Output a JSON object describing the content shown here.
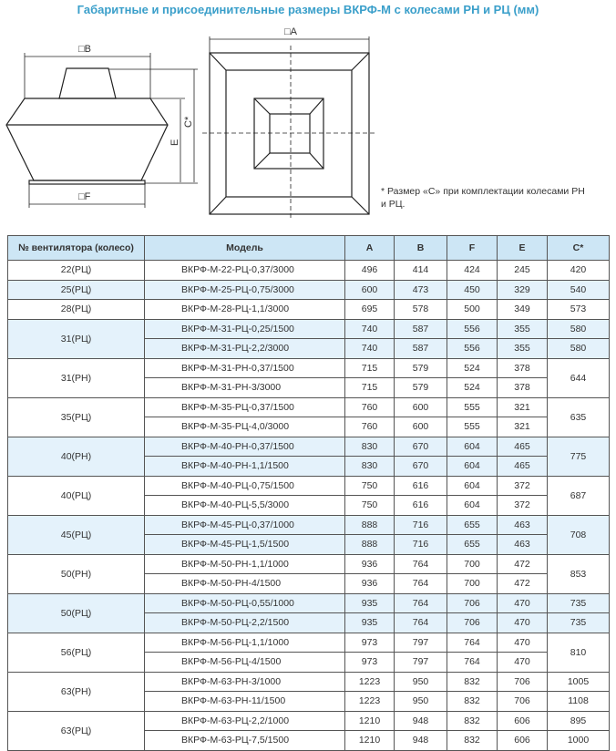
{
  "title": "Габаритные и присоединительные размеры ВКРФ-М с колесами РН и РЦ (мм)",
  "drawing": {
    "label_b": "□B",
    "label_f": "□F",
    "label_e": "E",
    "label_c": "C*",
    "label_a": "□A"
  },
  "footnote": "* Размер «С» при комплектации колесами РН и РЦ.",
  "colors": {
    "title": "#3a9fca",
    "header_bg": "#cde6f5",
    "shaded_row": "#e4f2fb"
  },
  "table": {
    "headers": [
      "№ вентилятора (колесо)",
      "Модель",
      "A",
      "B",
      "F",
      "E",
      "C*"
    ],
    "groups": [
      {
        "fan": "22(РЦ)",
        "shaded": false,
        "rows": [
          [
            "ВКРФ-М-22-РЦ-0,37/3000",
            "496",
            "414",
            "424",
            "245",
            "420"
          ]
        ]
      },
      {
        "fan": "25(РЦ)",
        "shaded": true,
        "rows": [
          [
            "ВКРФ-М-25-РЦ-0,75/3000",
            "600",
            "473",
            "450",
            "329",
            "540"
          ]
        ]
      },
      {
        "fan": "28(РЦ)",
        "shaded": false,
        "rows": [
          [
            "ВКРФ-М-28-РЦ-1,1/3000",
            "695",
            "578",
            "500",
            "349",
            "573"
          ]
        ]
      },
      {
        "fan": "31(РЦ)",
        "shaded": true,
        "rows": [
          [
            "ВКРФ-М-31-РЦ-0,25/1500",
            "740",
            "587",
            "556",
            "355",
            "580"
          ],
          [
            "ВКРФ-М-31-РЦ-2,2/3000",
            "740",
            "587",
            "556",
            "355",
            "580"
          ]
        ]
      },
      {
        "fan": "31(РН)",
        "shaded": false,
        "c_merged": "644",
        "rows": [
          [
            "ВКРФ-М-31-РН-0,37/1500",
            "715",
            "579",
            "524",
            "378"
          ],
          [
            "ВКРФ-М-31-РН-3/3000",
            "715",
            "579",
            "524",
            "378"
          ]
        ]
      },
      {
        "fan": "35(РЦ)",
        "shaded": false,
        "c_merged": "635",
        "rows": [
          [
            "ВКРФ-М-35-РЦ-0,37/1500",
            "760",
            "600",
            "555",
            "321"
          ],
          [
            "ВКРФ-М-35-РЦ-4,0/3000",
            "760",
            "600",
            "555",
            "321"
          ]
        ]
      },
      {
        "fan": "40(РН)",
        "shaded": true,
        "c_merged": "775",
        "rows": [
          [
            "ВКРФ-М-40-РН-0,37/1500",
            "830",
            "670",
            "604",
            "465"
          ],
          [
            "ВКРФ-М-40-РН-1,1/1500",
            "830",
            "670",
            "604",
            "465"
          ]
        ]
      },
      {
        "fan": "40(РЦ)",
        "shaded": false,
        "c_merged": "687",
        "rows": [
          [
            "ВКРФ-М-40-РЦ-0,75/1500",
            "750",
            "616",
            "604",
            "372"
          ],
          [
            "ВКРФ-М-40-РЦ-5,5/3000",
            "750",
            "616",
            "604",
            "372"
          ]
        ]
      },
      {
        "fan": "45(РЦ)",
        "shaded": true,
        "c_merged": "708",
        "rows": [
          [
            "ВКРФ-М-45-РЦ-0,37/1000",
            "888",
            "716",
            "655",
            "463"
          ],
          [
            "ВКРФ-М-45-РЦ-1,5/1500",
            "888",
            "716",
            "655",
            "463"
          ]
        ]
      },
      {
        "fan": "50(РН)",
        "shaded": false,
        "c_merged": "853",
        "rows": [
          [
            "ВКРФ-М-50-РН-1,1/1000",
            "936",
            "764",
            "700",
            "472"
          ],
          [
            "ВКРФ-М-50-РН-4/1500",
            "936",
            "764",
            "700",
            "472"
          ]
        ]
      },
      {
        "fan": "50(РЦ)",
        "shaded": true,
        "rows": [
          [
            "ВКРФ-М-50-РЦ-0,55/1000",
            "935",
            "764",
            "706",
            "470",
            "735"
          ],
          [
            "ВКРФ-М-50-РЦ-2,2/1500",
            "935",
            "764",
            "706",
            "470",
            "735"
          ]
        ]
      },
      {
        "fan": "56(РЦ)",
        "shaded": false,
        "c_merged": "810",
        "rows": [
          [
            "ВКРФ-М-56-РЦ-1,1/1000",
            "973",
            "797",
            "764",
            "470"
          ],
          [
            "ВКРФ-М-56-РЦ-4/1500",
            "973",
            "797",
            "764",
            "470"
          ]
        ]
      },
      {
        "fan": "63(РН)",
        "shaded": false,
        "rows": [
          [
            "ВКРФ-М-63-РН-3/1000",
            "1223",
            "950",
            "832",
            "706",
            "1005"
          ],
          [
            "ВКРФ-М-63-РН-11/1500",
            "1223",
            "950",
            "832",
            "706",
            "1108"
          ]
        ]
      },
      {
        "fan": "63(РЦ)",
        "shaded": false,
        "rows": [
          [
            "ВКРФ-М-63-РЦ-2,2/1000",
            "1210",
            "948",
            "832",
            "606",
            "895"
          ],
          [
            "ВКРФ-М-63-РЦ-7,5/1500",
            "1210",
            "948",
            "832",
            "606",
            "1000"
          ]
        ]
      }
    ]
  }
}
